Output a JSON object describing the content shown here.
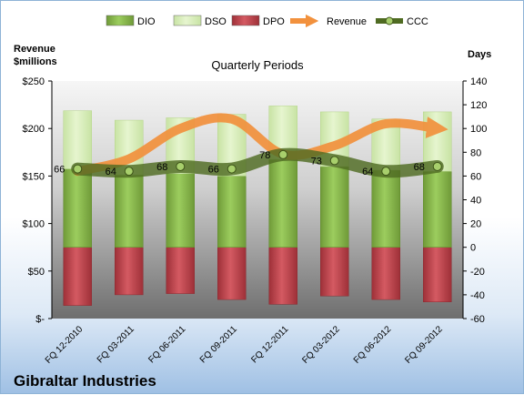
{
  "chart_data": {
    "type": "bar",
    "company": "Gibraltar Industries",
    "subtitle": "Quarterly Periods",
    "left_axis_title": [
      "Revenue",
      "$millions"
    ],
    "right_axis_title": "Days",
    "categories": [
      "FQ 12-2010",
      "FQ 03-2011",
      "FQ 06-2011",
      "FQ 09-2011",
      "FQ 12-2011",
      "FQ 03-2012",
      "FQ 06-2012",
      "FQ 09-2012"
    ],
    "left_ticks": [
      "$-",
      "$50",
      "$100",
      "$150",
      "$200",
      "$250"
    ],
    "left_range": [
      0,
      250
    ],
    "right_range": [
      -60,
      140
    ],
    "right_ticks": [
      -60,
      -40,
      -20,
      0,
      20,
      40,
      60,
      80,
      100,
      120,
      140
    ],
    "series": [
      {
        "name": "DIO",
        "kind": "bar",
        "color": "#8cc04f",
        "values": [
          66,
          61,
          62,
          60,
          74,
          68,
          65,
          64
        ]
      },
      {
        "name": "DSO",
        "kind": "bar",
        "color": "#d7eeb5",
        "values": [
          49,
          46,
          47,
          52,
          45,
          46,
          43,
          50
        ]
      },
      {
        "name": "DPO",
        "kind": "bar",
        "color": "#c5444d",
        "values": [
          -49,
          -40,
          -39,
          -44,
          -48,
          -41,
          -44,
          -46
        ]
      },
      {
        "name": "Revenue",
        "kind": "line",
        "color": "#f2913d",
        "values": [
          155,
          168,
          200,
          210,
          173,
          182,
          205,
          200
        ]
      },
      {
        "name": "CCC",
        "kind": "line",
        "color": "#5a7a2a",
        "values": [
          66,
          64,
          68,
          66,
          78,
          73,
          64,
          68
        ]
      }
    ]
  }
}
